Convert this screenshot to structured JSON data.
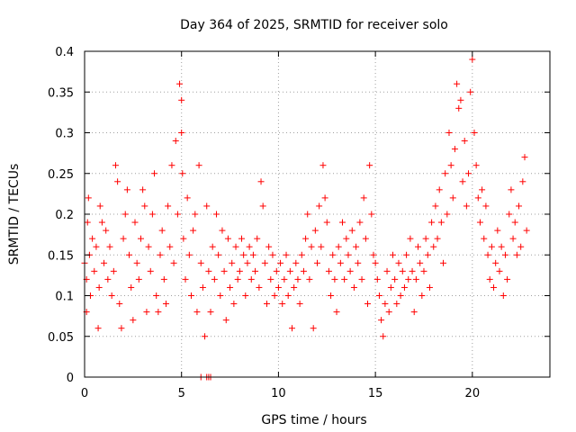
{
  "chart_data": {
    "type": "scatter",
    "title": "Day 364 of 2025, SRMTID for receiver solo",
    "xlabel": "GPS time / hours",
    "ylabel": "SRMTID / TECUs",
    "xlim": [
      0,
      24
    ],
    "ylim": [
      0,
      0.4
    ],
    "xticks": [
      0,
      5,
      10,
      15,
      20
    ],
    "xtick_labels": [
      "0",
      "5",
      "10",
      "15",
      "20"
    ],
    "yticks": [
      0,
      0.05,
      0.1,
      0.15,
      0.2,
      0.25,
      0.3,
      0.35,
      0.4
    ],
    "ytick_labels": [
      "0",
      "0.05",
      "0.1",
      "0.15",
      "0.2",
      "0.25",
      "0.3",
      "0.35",
      "0.4"
    ],
    "grid": true,
    "marker": "+",
    "color": "#ff0000",
    "series": [
      {
        "name": "SRMTID",
        "points": [
          [
            0.0,
            0.14
          ],
          [
            0.1,
            0.08
          ],
          [
            0.1,
            0.12
          ],
          [
            0.15,
            0.19
          ],
          [
            0.2,
            0.22
          ],
          [
            0.25,
            0.15
          ],
          [
            0.3,
            0.1
          ],
          [
            0.4,
            0.17
          ],
          [
            0.5,
            0.13
          ],
          [
            0.6,
            0.16
          ],
          [
            0.7,
            0.06
          ],
          [
            0.75,
            0.11
          ],
          [
            0.8,
            0.21
          ],
          [
            0.9,
            0.19
          ],
          [
            1.0,
            0.14
          ],
          [
            1.1,
            0.18
          ],
          [
            1.2,
            0.12
          ],
          [
            1.3,
            0.16
          ],
          [
            1.4,
            0.1
          ],
          [
            1.5,
            0.13
          ],
          [
            1.6,
            0.26
          ],
          [
            1.7,
            0.24
          ],
          [
            1.8,
            0.09
          ],
          [
            1.9,
            0.06
          ],
          [
            2.0,
            0.17
          ],
          [
            2.1,
            0.2
          ],
          [
            2.2,
            0.23
          ],
          [
            2.3,
            0.15
          ],
          [
            2.4,
            0.11
          ],
          [
            2.5,
            0.07
          ],
          [
            2.6,
            0.19
          ],
          [
            2.7,
            0.14
          ],
          [
            2.8,
            0.12
          ],
          [
            2.9,
            0.17
          ],
          [
            3.0,
            0.23
          ],
          [
            3.1,
            0.21
          ],
          [
            3.2,
            0.08
          ],
          [
            3.3,
            0.16
          ],
          [
            3.4,
            0.13
          ],
          [
            3.5,
            0.2
          ],
          [
            3.6,
            0.25
          ],
          [
            3.7,
            0.1
          ],
          [
            3.8,
            0.08
          ],
          [
            3.9,
            0.15
          ],
          [
            4.0,
            0.18
          ],
          [
            4.1,
            0.12
          ],
          [
            4.2,
            0.09
          ],
          [
            4.3,
            0.21
          ],
          [
            4.4,
            0.16
          ],
          [
            4.5,
            0.26
          ],
          [
            4.6,
            0.14
          ],
          [
            4.7,
            0.29
          ],
          [
            4.8,
            0.2
          ],
          [
            4.9,
            0.36
          ],
          [
            5.0,
            0.34
          ],
          [
            5.0,
            0.3
          ],
          [
            5.05,
            0.25
          ],
          [
            5.1,
            0.17
          ],
          [
            5.2,
            0.12
          ],
          [
            5.3,
            0.22
          ],
          [
            5.4,
            0.15
          ],
          [
            5.5,
            0.1
          ],
          [
            5.6,
            0.18
          ],
          [
            5.7,
            0.2
          ],
          [
            5.8,
            0.08
          ],
          [
            5.9,
            0.26
          ],
          [
            6.0,
            0.14
          ],
          [
            6.1,
            0.11
          ],
          [
            6.2,
            0.05
          ],
          [
            6.3,
            0.21
          ],
          [
            6.4,
            0.13
          ],
          [
            6.5,
            0.08
          ],
          [
            6.6,
            0.16
          ],
          [
            6.7,
            0.12
          ],
          [
            6.8,
            0.2
          ],
          [
            6.9,
            0.15
          ],
          [
            7.0,
            0.1
          ],
          [
            7.1,
            0.18
          ],
          [
            7.2,
            0.13
          ],
          [
            7.3,
            0.07
          ],
          [
            7.4,
            0.17
          ],
          [
            7.5,
            0.11
          ],
          [
            7.6,
            0.14
          ],
          [
            7.7,
            0.09
          ],
          [
            7.8,
            0.16
          ],
          [
            7.9,
            0.12
          ],
          [
            8.0,
            0.13
          ],
          [
            8.1,
            0.17
          ],
          [
            8.2,
            0.15
          ],
          [
            8.3,
            0.1
          ],
          [
            8.4,
            0.14
          ],
          [
            8.5,
            0.16
          ],
          [
            8.6,
            0.12
          ],
          [
            8.7,
            0.15
          ],
          [
            8.8,
            0.13
          ],
          [
            8.9,
            0.17
          ],
          [
            9.0,
            0.11
          ],
          [
            9.1,
            0.24
          ],
          [
            9.2,
            0.21
          ],
          [
            9.3,
            0.14
          ],
          [
            9.4,
            0.09
          ],
          [
            9.5,
            0.16
          ],
          [
            9.6,
            0.12
          ],
          [
            9.7,
            0.15
          ],
          [
            9.8,
            0.1
          ],
          [
            9.9,
            0.13
          ],
          [
            10.0,
            0.11
          ],
          [
            10.1,
            0.14
          ],
          [
            10.2,
            0.09
          ],
          [
            10.3,
            0.12
          ],
          [
            10.4,
            0.15
          ],
          [
            10.5,
            0.1
          ],
          [
            10.6,
            0.13
          ],
          [
            10.7,
            0.06
          ],
          [
            10.8,
            0.11
          ],
          [
            10.9,
            0.14
          ],
          [
            11.0,
            0.12
          ],
          [
            11.1,
            0.09
          ],
          [
            11.2,
            0.15
          ],
          [
            11.3,
            0.13
          ],
          [
            11.4,
            0.17
          ],
          [
            11.5,
            0.2
          ],
          [
            11.6,
            0.12
          ],
          [
            11.7,
            0.16
          ],
          [
            11.8,
            0.06
          ],
          [
            11.9,
            0.18
          ],
          [
            12.0,
            0.14
          ],
          [
            12.1,
            0.21
          ],
          [
            12.2,
            0.16
          ],
          [
            12.3,
            0.26
          ],
          [
            12.4,
            0.22
          ],
          [
            12.5,
            0.19
          ],
          [
            12.6,
            0.13
          ],
          [
            12.7,
            0.1
          ],
          [
            12.8,
            0.15
          ],
          [
            12.9,
            0.12
          ],
          [
            13.0,
            0.08
          ],
          [
            13.1,
            0.16
          ],
          [
            13.2,
            0.14
          ],
          [
            13.3,
            0.19
          ],
          [
            13.4,
            0.12
          ],
          [
            13.5,
            0.17
          ],
          [
            13.6,
            0.15
          ],
          [
            13.7,
            0.13
          ],
          [
            13.8,
            0.18
          ],
          [
            13.9,
            0.11
          ],
          [
            14.0,
            0.16
          ],
          [
            14.1,
            0.14
          ],
          [
            14.2,
            0.19
          ],
          [
            14.3,
            0.12
          ],
          [
            14.4,
            0.22
          ],
          [
            14.5,
            0.17
          ],
          [
            14.6,
            0.09
          ],
          [
            14.7,
            0.26
          ],
          [
            14.8,
            0.2
          ],
          [
            14.9,
            0.15
          ],
          [
            15.0,
            0.14
          ],
          [
            15.1,
            0.12
          ],
          [
            15.2,
            0.1
          ],
          [
            15.3,
            0.07
          ],
          [
            15.4,
            0.05
          ],
          [
            15.5,
            0.09
          ],
          [
            15.6,
            0.13
          ],
          [
            15.7,
            0.08
          ],
          [
            15.8,
            0.11
          ],
          [
            15.9,
            0.15
          ],
          [
            16.0,
            0.12
          ],
          [
            16.1,
            0.09
          ],
          [
            16.2,
            0.14
          ],
          [
            16.3,
            0.1
          ],
          [
            16.4,
            0.13
          ],
          [
            16.5,
            0.11
          ],
          [
            16.6,
            0.15
          ],
          [
            16.7,
            0.12
          ],
          [
            16.8,
            0.17
          ],
          [
            16.9,
            0.13
          ],
          [
            17.0,
            0.08
          ],
          [
            17.1,
            0.12
          ],
          [
            17.2,
            0.16
          ],
          [
            17.3,
            0.14
          ],
          [
            17.4,
            0.1
          ],
          [
            17.5,
            0.13
          ],
          [
            17.6,
            0.17
          ],
          [
            17.7,
            0.15
          ],
          [
            17.8,
            0.11
          ],
          [
            17.9,
            0.19
          ],
          [
            18.0,
            0.16
          ],
          [
            18.1,
            0.21
          ],
          [
            18.2,
            0.17
          ],
          [
            18.3,
            0.23
          ],
          [
            18.4,
            0.19
          ],
          [
            18.5,
            0.14
          ],
          [
            18.6,
            0.25
          ],
          [
            18.7,
            0.2
          ],
          [
            18.8,
            0.3
          ],
          [
            18.9,
            0.26
          ],
          [
            19.0,
            0.22
          ],
          [
            19.1,
            0.28
          ],
          [
            19.2,
            0.36
          ],
          [
            19.3,
            0.33
          ],
          [
            19.4,
            0.34
          ],
          [
            19.5,
            0.24
          ],
          [
            19.6,
            0.29
          ],
          [
            19.7,
            0.21
          ],
          [
            19.8,
            0.25
          ],
          [
            19.9,
            0.35
          ],
          [
            20.0,
            0.39
          ],
          [
            20.1,
            0.3
          ],
          [
            20.2,
            0.26
          ],
          [
            20.3,
            0.22
          ],
          [
            20.4,
            0.19
          ],
          [
            20.5,
            0.23
          ],
          [
            20.6,
            0.17
          ],
          [
            20.7,
            0.21
          ],
          [
            20.8,
            0.15
          ],
          [
            20.9,
            0.12
          ],
          [
            21.0,
            0.16
          ],
          [
            21.1,
            0.11
          ],
          [
            21.2,
            0.14
          ],
          [
            21.3,
            0.18
          ],
          [
            21.4,
            0.13
          ],
          [
            21.5,
            0.16
          ],
          [
            21.6,
            0.1
          ],
          [
            21.7,
            0.15
          ],
          [
            21.8,
            0.12
          ],
          [
            21.9,
            0.2
          ],
          [
            22.0,
            0.23
          ],
          [
            22.1,
            0.17
          ],
          [
            22.2,
            0.19
          ],
          [
            22.3,
            0.15
          ],
          [
            22.4,
            0.21
          ],
          [
            22.5,
            0.16
          ],
          [
            22.6,
            0.24
          ],
          [
            22.7,
            0.27
          ],
          [
            22.8,
            0.18
          ],
          [
            6.0,
            0.0
          ],
          [
            6.3,
            0.0
          ],
          [
            6.4,
            0.0
          ],
          [
            6.5,
            0.0
          ]
        ]
      }
    ]
  }
}
